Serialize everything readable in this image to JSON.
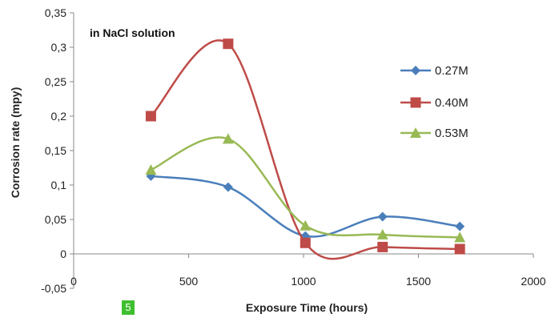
{
  "chart_data": {
    "type": "line",
    "title": "",
    "annotation": "in NaCl solution",
    "xlabel": "Exposure Time (hours)",
    "ylabel": "Corrosion rate (mpy)",
    "xlim": [
      0,
      2000
    ],
    "ylim": [
      -0.05,
      0.35
    ],
    "x_ticks": [
      0,
      500,
      1000,
      1500,
      2000
    ],
    "x_tick_labels": [
      "0",
      "500",
      "1000",
      "1500",
      "2000"
    ],
    "y_ticks": [
      -0.05,
      0,
      0.05,
      0.1,
      0.15,
      0.2,
      0.25,
      0.3,
      0.35
    ],
    "y_tick_labels": [
      "-0,05",
      "0",
      "0,05",
      "0,1",
      "0,15",
      "0,2",
      "0,25",
      "0,3",
      "0,35"
    ],
    "grid": false,
    "legend_position": "right",
    "smooth": true,
    "series": [
      {
        "name": "0.27M",
        "color": "#4a7ebb",
        "marker": "diamond",
        "x": [
          336,
          672,
          1008,
          1344,
          1680
        ],
        "y": [
          0.113,
          0.097,
          0.026,
          0.054,
          0.04
        ]
      },
      {
        "name": "0.40M",
        "color": "#be4b48",
        "marker": "square",
        "x": [
          336,
          672,
          1008,
          1344,
          1680
        ],
        "y": [
          0.2,
          0.305,
          0.016,
          0.01,
          0.007
        ]
      },
      {
        "name": "0.53M",
        "color": "#98b954",
        "marker": "triangle",
        "x": [
          336,
          672,
          1008,
          1344,
          1680
        ],
        "y": [
          0.122,
          0.167,
          0.041,
          0.028,
          0.024
        ]
      }
    ]
  },
  "page_badge": "5"
}
